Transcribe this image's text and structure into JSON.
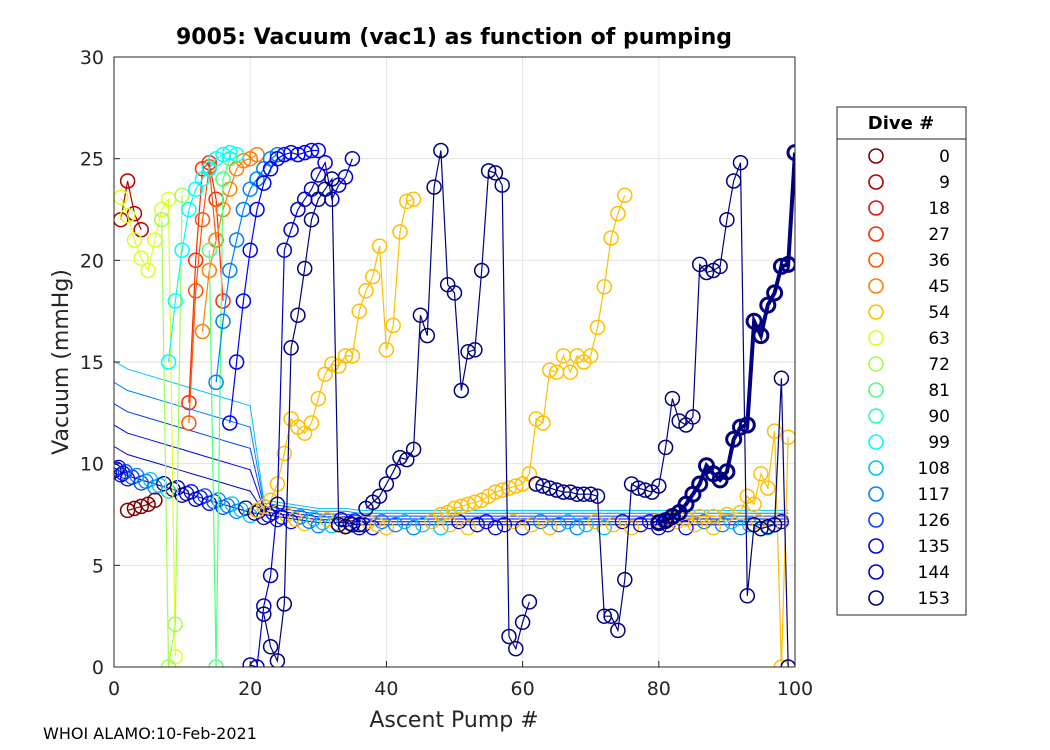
{
  "chart_data": {
    "type": "line",
    "title": "9005: Vacuum (vac1) as function of pumping",
    "xlabel": "Ascent Pump #",
    "ylabel": "Vacuum (mmHg)",
    "xlim": [
      0,
      100
    ],
    "ylim": [
      0,
      30
    ],
    "xticks": [
      "0",
      "20",
      "40",
      "60",
      "80",
      "100"
    ],
    "yticks": [
      "0",
      "5",
      "10",
      "15",
      "20",
      "25",
      "30"
    ],
    "grid": true,
    "marker": "circle",
    "legend": {
      "title": "Dive #",
      "placement": "right",
      "entries": [
        {
          "label": "0",
          "color": "#800000"
        },
        {
          "label": "9",
          "color": "#B00000"
        },
        {
          "label": "18",
          "color": "#E01010"
        },
        {
          "label": "27",
          "color": "#FF2A00"
        },
        {
          "label": "36",
          "color": "#FF5500"
        },
        {
          "label": "45",
          "color": "#FF8000"
        },
        {
          "label": "54",
          "color": "#FFBF00"
        },
        {
          "label": "63",
          "color": "#DFFF20"
        },
        {
          "label": "72",
          "color": "#A0FF50"
        },
        {
          "label": "81",
          "color": "#50FF80"
        },
        {
          "label": "90",
          "color": "#20FFC0"
        },
        {
          "label": "99",
          "color": "#00FFFF"
        },
        {
          "label": "108",
          "color": "#00C0FF"
        },
        {
          "label": "117",
          "color": "#0080FF"
        },
        {
          "label": "126",
          "color": "#0040FF"
        },
        {
          "label": "135",
          "color": "#0000FF"
        },
        {
          "label": "144",
          "color": "#0000C8"
        },
        {
          "label": "153",
          "color": "#000080"
        }
      ]
    },
    "series": [
      {
        "name": "0",
        "x": [
          2,
          3,
          4,
          5,
          6
        ],
        "y": [
          7.7,
          7.8,
          7.9,
          8.0,
          8.2
        ]
      },
      {
        "name": "9",
        "x": [
          1,
          2,
          3,
          4
        ],
        "y": [
          22.0,
          23.9,
          22.3,
          21.5
        ]
      },
      {
        "name": "27",
        "x": [
          11,
          12,
          13,
          14,
          15,
          16
        ],
        "y": [
          13.0,
          20.0,
          24.5,
          24.8,
          23.0,
          18.0
        ]
      },
      {
        "name": "36",
        "x": [
          11,
          12,
          13,
          14,
          15
        ],
        "y": [
          12.0,
          18.5,
          22.0,
          24.6,
          21.0
        ]
      },
      {
        "name": "45",
        "x": [
          13,
          14,
          15,
          16,
          17,
          18,
          19,
          20,
          21
        ],
        "y": [
          16.5,
          19.5,
          21.0,
          22.5,
          23.5,
          24.5,
          24.9,
          25.0,
          25.2
        ]
      },
      {
        "name": "54a",
        "x": [
          21,
          22,
          23,
          24,
          25,
          26,
          27,
          28,
          29,
          30,
          31,
          32,
          33,
          34,
          35,
          36,
          37,
          38,
          39,
          40,
          41,
          42,
          43,
          44
        ],
        "y": [
          7.7,
          7.9,
          8.2,
          9.0,
          10.5,
          12.2,
          11.8,
          11.5,
          12.0,
          13.2,
          14.4,
          14.9,
          14.8,
          15.3,
          15.3,
          17.5,
          18.5,
          19.2,
          20.7,
          15.6,
          16.8,
          21.4,
          22.9,
          23.0
        ]
      },
      {
        "name": "54b",
        "x": [
          48,
          49,
          50,
          51,
          52,
          53,
          54,
          55,
          56,
          57,
          58,
          59,
          60,
          61,
          62,
          63,
          64,
          65,
          66,
          67,
          68,
          69,
          70,
          71,
          72,
          73,
          74,
          75
        ],
        "y": [
          7.5,
          7.6,
          7.8,
          7.9,
          8.0,
          8.1,
          8.2,
          8.4,
          8.6,
          8.7,
          8.8,
          8.9,
          9.0,
          9.5,
          12.2,
          12.0,
          14.6,
          14.5,
          15.3,
          14.5,
          15.3,
          15.0,
          15.3,
          16.7,
          18.7,
          21.1,
          22.3,
          23.2
        ]
      },
      {
        "name": "54c",
        "x": [
          80,
          82,
          84,
          86,
          88,
          90,
          92,
          93,
          94,
          95,
          96,
          97,
          98,
          99
        ],
        "y": [
          7.2,
          7.3,
          7.3,
          7.4,
          7.4,
          7.5,
          7.6,
          8.4,
          8.0,
          9.5,
          8.8,
          11.6,
          0.0,
          11.3
        ]
      },
      {
        "name": "63",
        "x": [
          1,
          2,
          3,
          4,
          5,
          6,
          7,
          8,
          9
        ],
        "y": [
          23.1,
          22.2,
          21.0,
          20.1,
          19.5,
          21.0,
          22.5,
          23.0,
          0.5
        ]
      },
      {
        "name": "72",
        "x": [
          7,
          8,
          9,
          10
        ],
        "y": [
          22.0,
          0.0,
          2.1,
          23.2
        ]
      },
      {
        "name": "81",
        "x": [
          14,
          15,
          16,
          17
        ],
        "y": [
          20.5,
          0.0,
          24.0,
          25.0
        ]
      },
      {
        "name": "99",
        "x": [
          8,
          9,
          10,
          11,
          12,
          13,
          14,
          15,
          16,
          17,
          18
        ],
        "y": [
          15.0,
          18.0,
          20.5,
          22.5,
          23.5,
          24.0,
          24.5,
          25.0,
          25.2,
          25.3,
          25.2
        ]
      },
      {
        "name": "117",
        "x": [
          15,
          16,
          17,
          18,
          19,
          20,
          21,
          22,
          23,
          24
        ],
        "y": [
          14.0,
          17.0,
          19.5,
          21.0,
          22.5,
          23.5,
          24.0,
          24.5,
          25.0,
          25.2
        ]
      },
      {
        "name": "135",
        "x": [
          17,
          18,
          19,
          20,
          21,
          22,
          23,
          24,
          25,
          26,
          27,
          28,
          29,
          30
        ],
        "y": [
          12.0,
          15.0,
          18.0,
          20.5,
          22.5,
          23.8,
          24.5,
          25.0,
          25.2,
          25.3,
          25.2,
          25.3,
          25.4,
          25.4
        ]
      },
      {
        "name": "144",
        "x": [
          20,
          21,
          22,
          23,
          24,
          25,
          26,
          27,
          28,
          29,
          30,
          31,
          32,
          33,
          34,
          35
        ],
        "y": [
          0.1,
          0.0,
          3.0,
          4.5,
          8.0,
          20.5,
          21.5,
          22.5,
          23.0,
          23.5,
          24.2,
          24.8,
          23.0,
          23.7,
          24.1,
          25.0
        ]
      },
      {
        "name": "153a",
        "x": [
          22,
          23,
          24,
          25,
          26,
          27,
          28,
          29,
          30,
          31,
          32,
          33,
          34,
          35,
          36
        ],
        "y": [
          2.6,
          1.0,
          0.3,
          3.1,
          15.7,
          17.3,
          19.6,
          22.0,
          23.0,
          23.5,
          24.0,
          7.0,
          6.9,
          7.0,
          7.0
        ]
      },
      {
        "name": "153b",
        "x": [
          37,
          38,
          39,
          40,
          41,
          42,
          43,
          44,
          45,
          46,
          47,
          48,
          49,
          50,
          51,
          52,
          53,
          54,
          55,
          56,
          57,
          58,
          59,
          60,
          61
        ],
        "y": [
          7.8,
          8.1,
          8.4,
          9.0,
          9.6,
          10.3,
          10.2,
          10.7,
          17.3,
          16.3,
          23.6,
          25.4,
          18.8,
          18.4,
          13.6,
          15.5,
          15.6,
          19.5,
          24.4,
          24.3,
          23.7,
          1.5,
          0.9,
          2.2,
          3.2
        ]
      },
      {
        "name": "153c",
        "x": [
          62,
          63,
          64,
          65,
          66,
          67,
          68,
          69,
          70,
          71,
          72,
          73,
          74,
          75,
          76,
          77,
          78,
          79,
          80,
          81,
          82,
          83,
          84,
          85,
          86,
          87,
          88,
          89,
          90,
          91,
          92,
          93,
          94,
          95,
          96,
          97,
          98,
          99
        ],
        "y": [
          9.0,
          8.9,
          8.8,
          8.7,
          8.6,
          8.6,
          8.5,
          8.5,
          8.5,
          8.4,
          2.5,
          2.5,
          1.8,
          4.3,
          9.0,
          8.8,
          8.7,
          8.6,
          8.9,
          10.8,
          13.2,
          12.1,
          11.9,
          12.3,
          19.8,
          19.4,
          19.5,
          19.7,
          22.0,
          23.9,
          24.8,
          3.5,
          7.0,
          6.8,
          6.9,
          7.0,
          14.2,
          0.0
        ]
      },
      {
        "name": "153d",
        "x": [
          80,
          81,
          82,
          83,
          84,
          85,
          86,
          87,
          88,
          89,
          90,
          91,
          92,
          93,
          94,
          95,
          96,
          97,
          98,
          99,
          100
        ],
        "y": [
          7.1,
          7.2,
          7.4,
          7.6,
          8.0,
          8.5,
          9.0,
          9.9,
          9.5,
          9.2,
          9.6,
          11.2,
          11.8,
          11.9,
          17.0,
          16.3,
          17.8,
          18.4,
          19.7,
          19.8,
          25.3
        ]
      }
    ],
    "baseline_band": {
      "x": [
        0,
        1,
        2,
        4,
        6,
        8,
        10,
        12,
        14,
        16,
        18,
        20,
        22,
        24,
        26,
        28,
        30,
        32,
        34,
        36,
        38,
        40,
        44,
        48,
        52,
        56,
        60,
        64,
        68,
        72,
        76,
        80,
        84,
        88,
        92,
        96,
        99
      ],
      "y": [
        9.8,
        9.6,
        9.4,
        9.2,
        9.0,
        8.8,
        8.6,
        8.4,
        8.2,
        8.0,
        7.8,
        7.6,
        7.5,
        7.4,
        7.3,
        7.2,
        7.1,
        7.1,
        7.1,
        7.0,
        7.0,
        7.0,
        7.0,
        7.0,
        7.0,
        7.0,
        7.0,
        7.0,
        7.0,
        7.0,
        7.0,
        7.0,
        7.0,
        7.0,
        7.0,
        7.0,
        7.0
      ]
    }
  },
  "footer": "WHOI ALAMO:10-Feb-2021"
}
